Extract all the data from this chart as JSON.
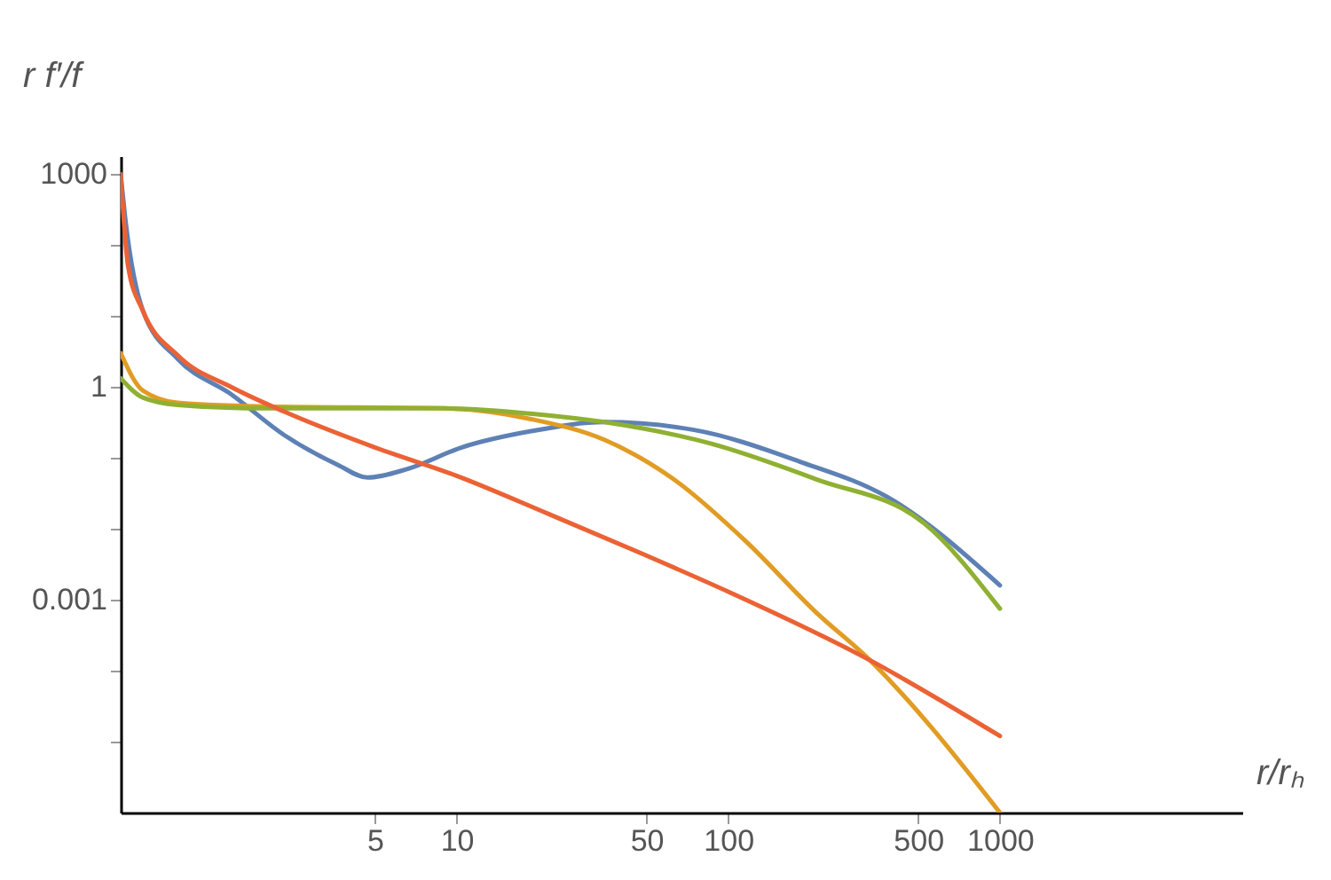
{
  "chart_data": {
    "type": "line",
    "xlabel": "r/rₕ",
    "ylabel": "r f′/f",
    "log": "xy",
    "grid": false,
    "legend": false,
    "marker": "none",
    "line_style": "solid",
    "xlim": [
      0.58,
      7800
    ],
    "ylim": [
      1e-06,
      1800
    ],
    "xticks": [
      5,
      10,
      50,
      100,
      500,
      1000
    ],
    "yticks": [
      {
        "value": 1e-05,
        "label": null
      },
      {
        "value": 0.0001,
        "label": null
      },
      {
        "value": 0.001,
        "label": "0.001"
      },
      {
        "value": 0.01,
        "label": null
      },
      {
        "value": 0.1,
        "label": null
      },
      1,
      {
        "value": 10,
        "label": null
      },
      {
        "value": 100,
        "label": null
      },
      1000
    ],
    "series": [
      {
        "color": "#5e81b5",
        "x": [
          0.58,
          0.6,
          0.7,
          0.94,
          1.48,
          2.32,
          3.65,
          4.7,
          6.6,
          10.4,
          19,
          35,
          74,
          183,
          386,
          1000
        ],
        "values": [
          1000,
          280,
          12,
          2.5,
          0.79,
          0.21,
          0.08,
          0.053,
          0.07,
          0.14,
          0.24,
          0.32,
          0.25,
          0.089,
          0.028,
          0.0016
        ]
      },
      {
        "color": "#e19c24",
        "x": [
          0.58,
          0.7,
          0.94,
          2.0,
          9,
          19,
          35,
          63,
          116,
          211,
          333,
          526,
          1000
        ],
        "values": [
          3,
          0.89,
          0.6,
          0.53,
          0.5,
          0.35,
          0.18,
          0.05,
          0.0067,
          0.00066,
          0.00014,
          2.1e-05,
          1e-06
        ]
      },
      {
        "color": "#8fb032",
        "x": [
          0.58,
          0.7,
          0.94,
          2.0,
          9,
          19,
          35,
          86,
          211,
          526,
          1000
        ],
        "values": [
          1.33,
          0.71,
          0.56,
          0.5,
          0.5,
          0.42,
          0.32,
          0.16,
          0.05,
          0.012,
          0.00075
        ]
      },
      {
        "color": "#eb6235",
        "x": [
          0.58,
          0.618,
          0.7,
          0.94,
          1.48,
          2.32,
          5,
          10,
          22,
          50,
          100,
          333,
          1000
        ],
        "values": [
          1000,
          50,
          11.9,
          2.8,
          1,
          0.45,
          0.141,
          0.056,
          0.016,
          0.0042,
          0.0013,
          0.00014,
          1.2e-05
        ]
      }
    ]
  }
}
